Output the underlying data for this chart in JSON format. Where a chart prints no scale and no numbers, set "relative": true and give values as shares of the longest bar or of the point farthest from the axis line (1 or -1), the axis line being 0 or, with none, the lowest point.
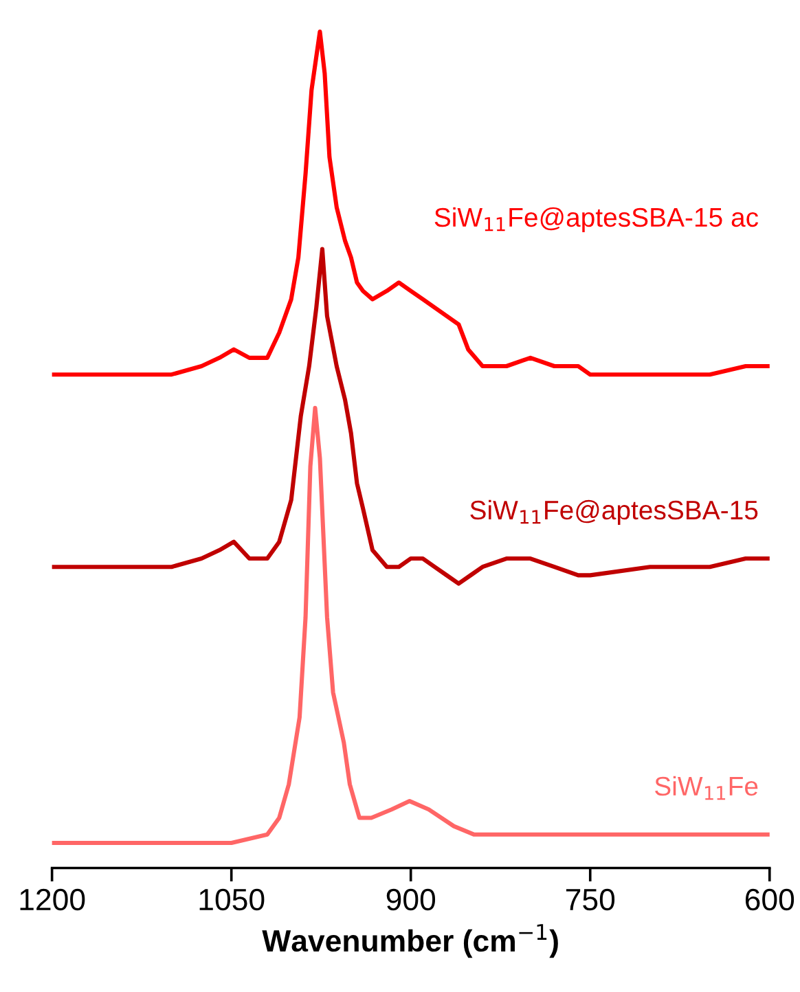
{
  "chart_data": {
    "type": "line",
    "xlabel": "Wavenumber (cm$^{−1}$)",
    "xlim": [
      1200,
      600
    ],
    "xticks": [
      1200,
      1050,
      900,
      750,
      600
    ],
    "relative": true,
    "tick_labels": "x",
    "grid": false,
    "legend": false,
    "marker": "none",
    "line_style": "solid",
    "series": [
      {
        "name": "SiW$_{11}$Fe@aptesSBA-15 ac",
        "color": "#ff0000",
        "x": [
          1200,
          1175,
          1150,
          1125,
          1100,
          1075,
          1060,
          1048,
          1035,
          1020,
          1010,
          1000,
          994,
          988,
          983,
          976,
          972,
          968,
          962,
          955,
          950,
          945,
          940,
          932,
          920,
          910,
          900,
          890,
          880,
          870,
          860,
          852,
          840,
          820,
          800,
          780,
          760,
          750,
          700,
          650,
          620,
          600
        ],
        "values": [
          0.59,
          0.59,
          0.59,
          0.59,
          0.59,
          0.6,
          0.61,
          0.62,
          0.61,
          0.61,
          0.64,
          0.68,
          0.73,
          0.83,
          0.93,
          1.0,
          0.95,
          0.85,
          0.79,
          0.75,
          0.73,
          0.7,
          0.69,
          0.68,
          0.69,
          0.7,
          0.69,
          0.68,
          0.67,
          0.66,
          0.65,
          0.62,
          0.6,
          0.6,
          0.61,
          0.6,
          0.6,
          0.59,
          0.59,
          0.59,
          0.6,
          0.6
        ]
      },
      {
        "name": "SiW$_{11}$Fe@aptesSBA-15",
        "color": "#c00000",
        "x": [
          1200,
          1175,
          1150,
          1125,
          1100,
          1075,
          1060,
          1048,
          1035,
          1020,
          1010,
          1000,
          992,
          985,
          979,
          974,
          970,
          962,
          955,
          950,
          945,
          940,
          932,
          920,
          910,
          900,
          890,
          880,
          870,
          860,
          850,
          840,
          820,
          800,
          780,
          760,
          750,
          700,
          650,
          620,
          600
        ],
        "values": [
          0.36,
          0.36,
          0.36,
          0.36,
          0.36,
          0.37,
          0.38,
          0.39,
          0.37,
          0.37,
          0.39,
          0.44,
          0.54,
          0.6,
          0.67,
          0.74,
          0.66,
          0.6,
          0.56,
          0.52,
          0.46,
          0.43,
          0.38,
          0.36,
          0.36,
          0.37,
          0.37,
          0.36,
          0.35,
          0.34,
          0.35,
          0.36,
          0.37,
          0.37,
          0.36,
          0.35,
          0.35,
          0.36,
          0.36,
          0.37,
          0.37
        ]
      },
      {
        "name": "SiW$_{11}$Fe",
        "color": "#ff6666",
        "x": [
          1200,
          1100,
          1050,
          1020,
          1010,
          1002,
          993,
          988,
          984,
          980,
          976,
          970,
          965,
          956,
          951,
          943,
          933,
          916,
          901,
          885,
          864,
          847,
          800,
          750,
          700,
          650,
          600
        ],
        "values": [
          0.03,
          0.03,
          0.03,
          0.04,
          0.06,
          0.1,
          0.18,
          0.3,
          0.48,
          0.55,
          0.49,
          0.3,
          0.21,
          0.15,
          0.1,
          0.06,
          0.06,
          0.07,
          0.08,
          0.07,
          0.05,
          0.04,
          0.04,
          0.04,
          0.04,
          0.04,
          0.04
        ]
      }
    ]
  }
}
